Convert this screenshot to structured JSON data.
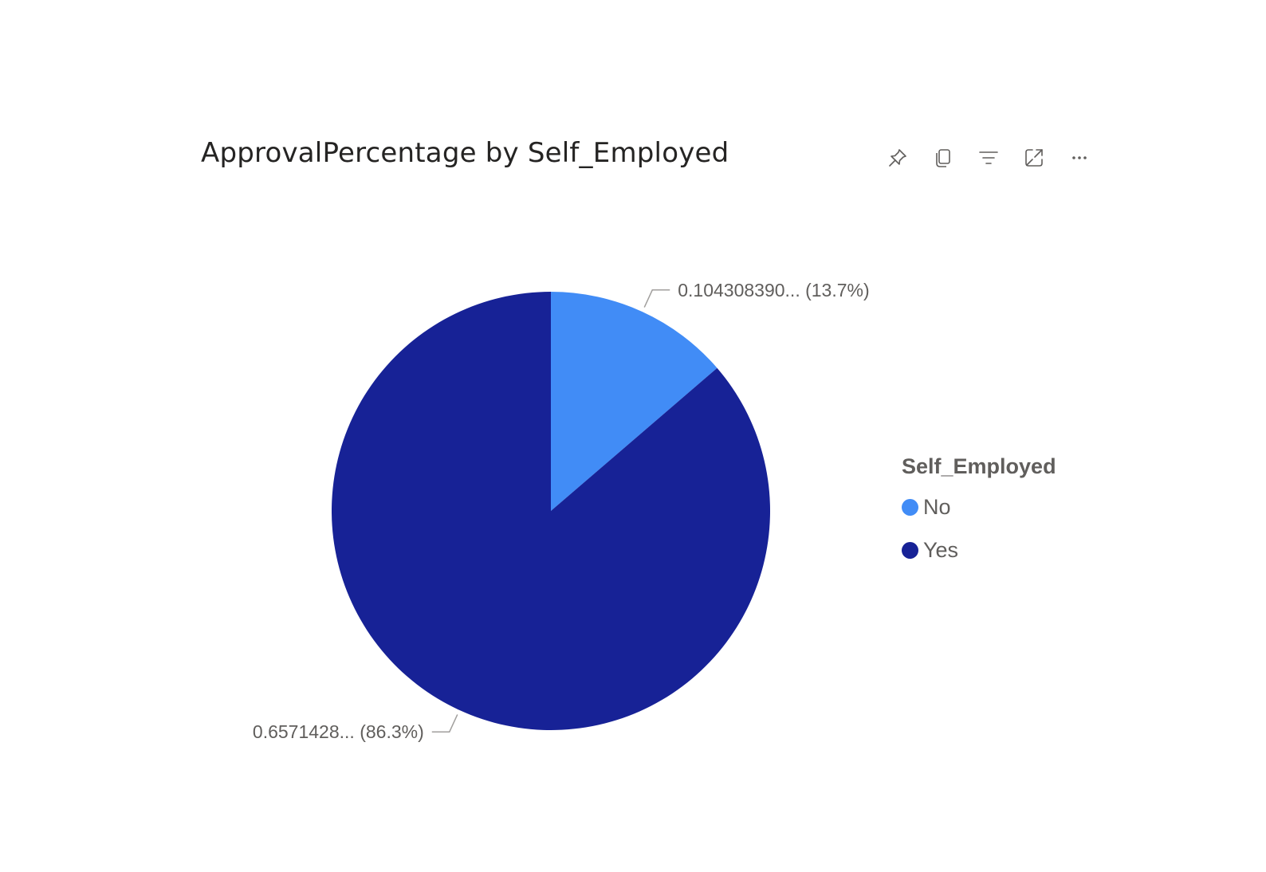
{
  "toolbar": {
    "icons": [
      "pin-icon",
      "copy-icon",
      "filter-icon",
      "focus-mode-icon",
      "more-options-icon"
    ]
  },
  "chart_data": {
    "type": "pie",
    "title": "ApprovalPercentage by Self_Employed",
    "legend_title": "Self_Employed",
    "legend_position": "right",
    "categories": [
      "No",
      "Yes"
    ],
    "values": [
      0.10430839,
      0.6571428
    ],
    "percent": [
      13.7,
      86.3
    ],
    "colors": [
      "#418CF6",
      "#172296"
    ],
    "data_labels": [
      "0.104308390... (13.7%)",
      "0.6571428... (86.3%)"
    ]
  }
}
